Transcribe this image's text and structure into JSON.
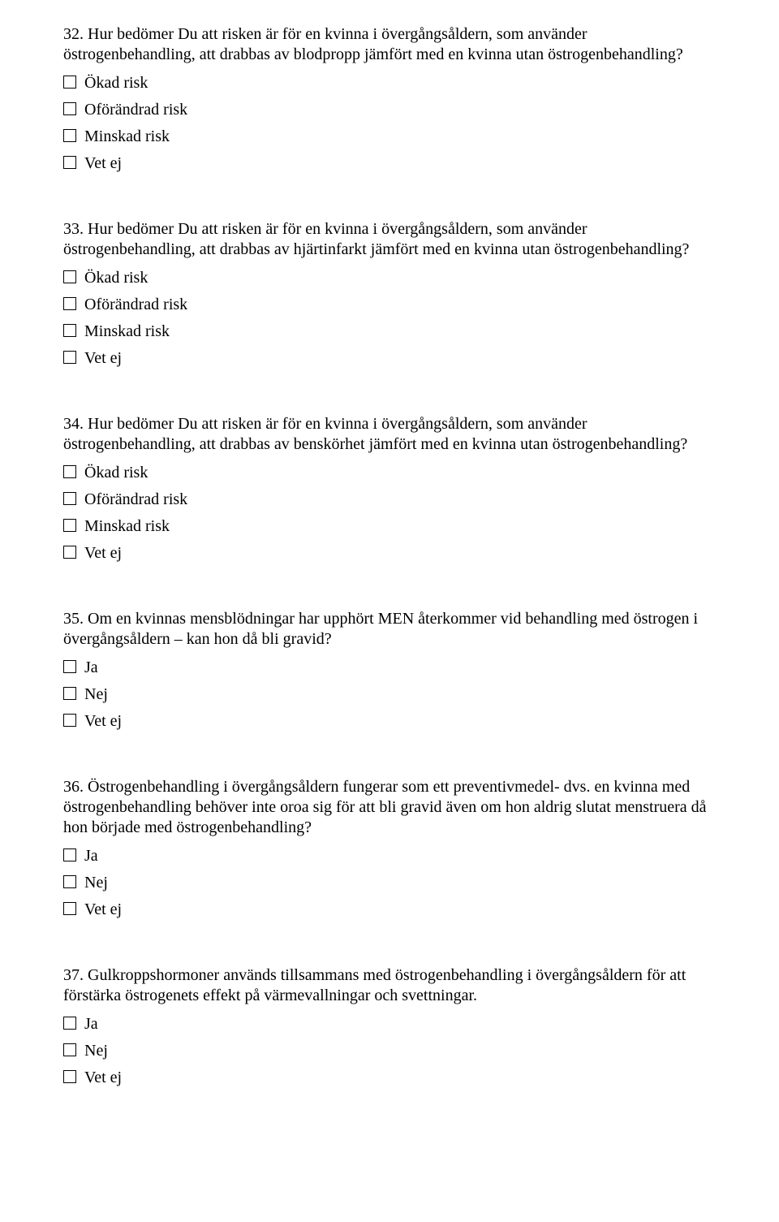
{
  "questions": [
    {
      "number": "32.",
      "text": "Hur bedömer Du att risken är för en kvinna i övergångsåldern, som använder östrogenbehandling, att drabbas av blodpropp jämfört med en kvinna utan östrogenbehandling?",
      "options": [
        "Ökad risk",
        "Oförändrad risk",
        "Minskad risk",
        "Vet ej"
      ]
    },
    {
      "number": "33.",
      "text": "Hur bedömer Du att risken är för en kvinna i övergångsåldern, som använder östrogenbehandling, att drabbas av hjärtinfarkt jämfört med en kvinna utan östrogenbehandling?",
      "options": [
        "Ökad risk",
        "Oförändrad risk",
        "Minskad risk",
        "Vet ej"
      ]
    },
    {
      "number": "34.",
      "text": "Hur bedömer Du att risken är för en kvinna i övergångsåldern, som använder östrogenbehandling, att drabbas av benskörhet jämfört med en kvinna utan östrogenbehandling?",
      "options": [
        "Ökad risk",
        "Oförändrad risk",
        "Minskad risk",
        "Vet ej"
      ]
    },
    {
      "number": "35.",
      "text": "Om en kvinnas mensblödningar har upphört MEN återkommer vid behandling med östrogen i övergångsåldern – kan hon då bli gravid?",
      "options": [
        "Ja",
        "Nej",
        "Vet ej"
      ]
    },
    {
      "number": "36.",
      "text": "Östrogenbehandling i övergångsåldern fungerar som ett preventivmedel- dvs. en kvinna med östrogenbehandling behöver inte oroa sig för att bli gravid även om hon aldrig slutat menstruera då hon började med östrogenbehandling?",
      "options": [
        "Ja",
        "Nej",
        "Vet ej"
      ]
    },
    {
      "number": "37.",
      "text": "Gulkroppshormoner används tillsammans med östrogenbehandling i övergångsåldern för att förstärka östrogenets effekt på värmevallningar och svettningar.",
      "options": [
        "Ja",
        "Nej",
        "Vet ej"
      ]
    }
  ]
}
